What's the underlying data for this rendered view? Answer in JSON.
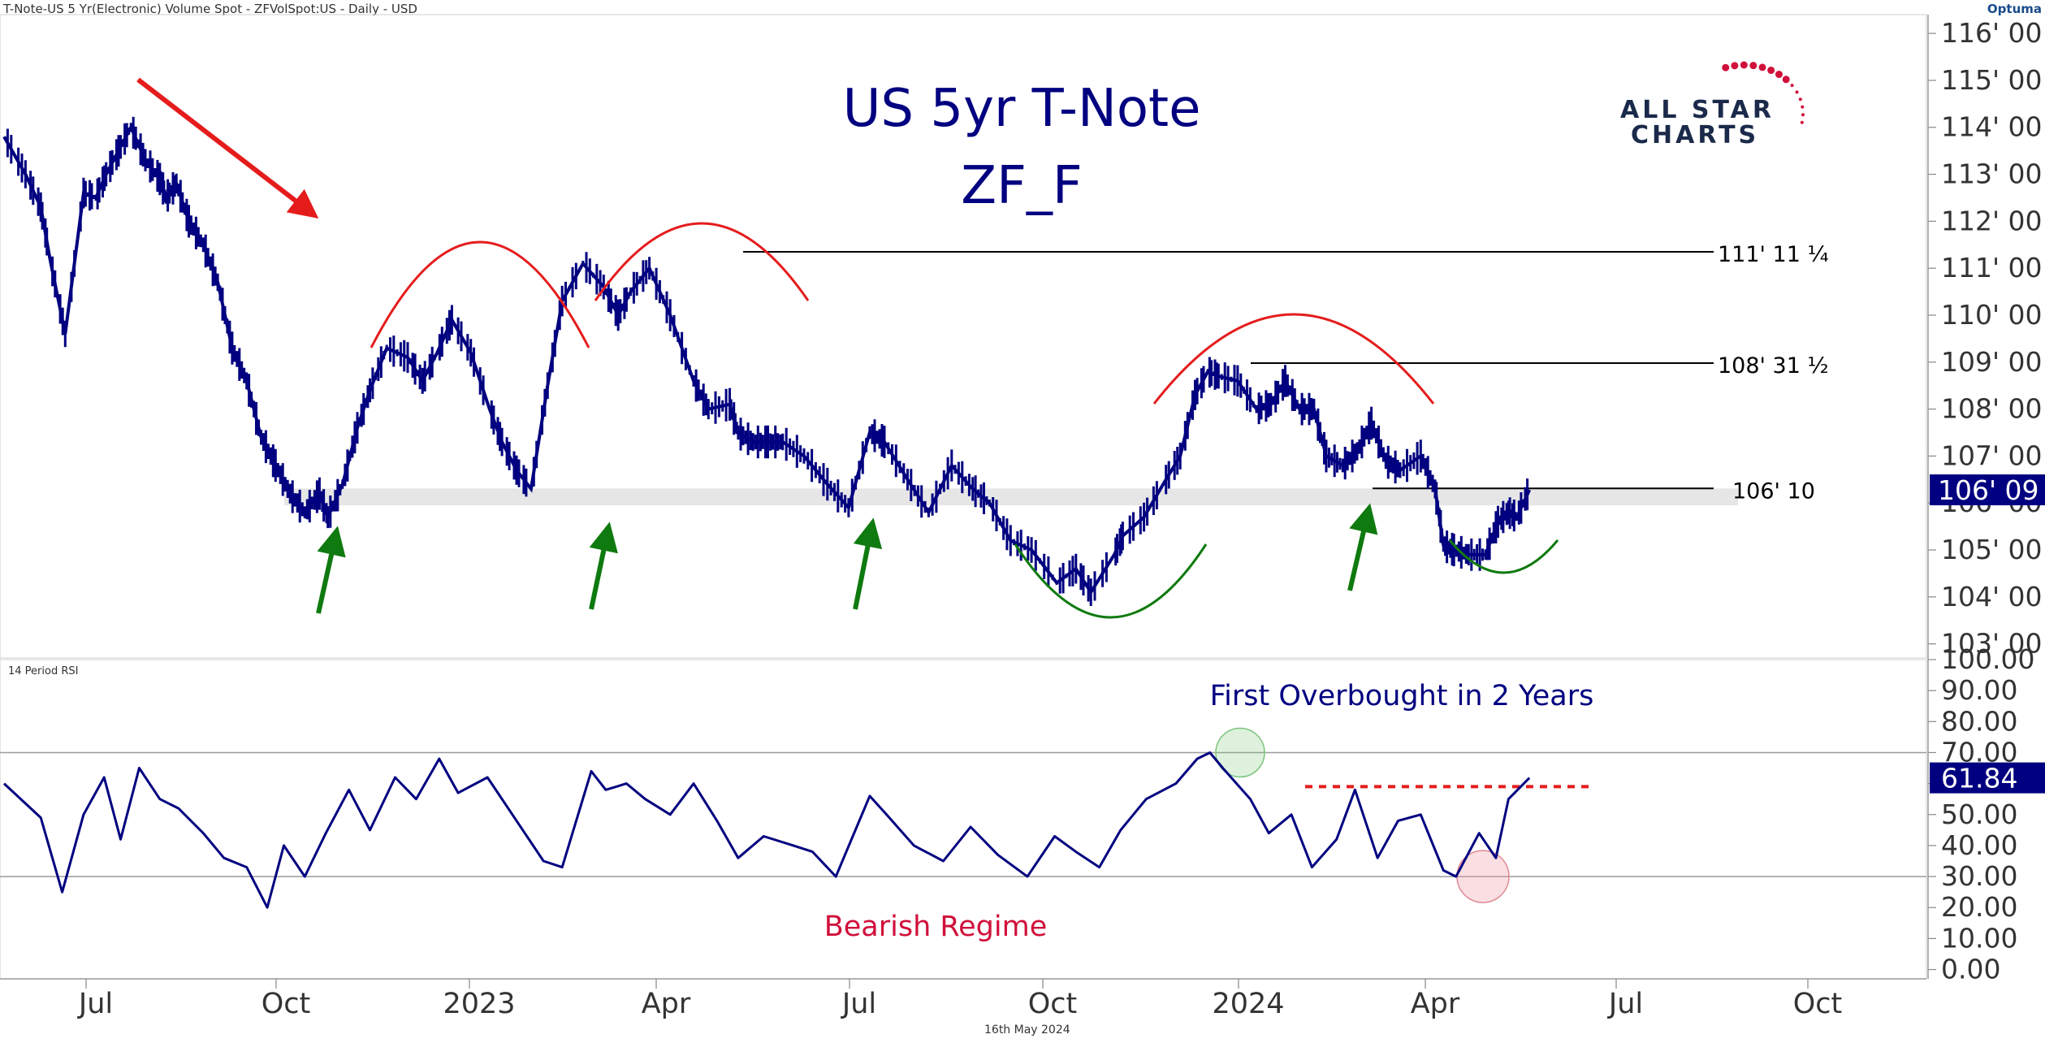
{
  "header": {
    "title": "T-Note-US 5 Yr(Electronic) Volume Spot - ZFVolSpot:US - Daily - USD",
    "brand": "Optuma"
  },
  "footer": {
    "date": "16th May 2024"
  },
  "logo": {
    "line1": "ALL STAR",
    "line2": "CHARTS"
  },
  "colors": {
    "price": "#000080",
    "down_arrow": "#e51c1c",
    "up_arrow": "#0f7a0f",
    "arc_red": "#e51c1c",
    "arc_green": "#0f7a0f",
    "rsi_line": "#000080",
    "annotation_blue": "#000080",
    "annotation_red": "#d0103a"
  },
  "chart_data": [
    {
      "type": "line",
      "title": "US 5yr T-Note",
      "subtitle": "ZF_F",
      "x_axis": {
        "ticks": [
          "Jul",
          "Oct",
          "2023",
          "Apr",
          "Jul",
          "Oct",
          "2024",
          "Apr",
          "Jul",
          "Oct"
        ]
      },
      "y_axis": {
        "ylim": [
          102.7,
          116.4
        ],
        "ticks": [
          "103' 00",
          "104' 00",
          "105' 00",
          "106' 00",
          "107' 00",
          "108' 00",
          "109' 00",
          "110' 00",
          "111' 00",
          "112' 00",
          "113' 00",
          "114' 00",
          "115' 00",
          "116' 00"
        ]
      },
      "current_price_label": "106' 09",
      "current_price_value": 106.28,
      "levels": [
        {
          "label": "111' 11 ¼",
          "value": 111.35
        },
        {
          "label": "108' 31 ½",
          "value": 108.98
        },
        {
          "label": "106' 10",
          "value": 106.31
        }
      ],
      "support_zone": [
        105.95,
        106.31
      ],
      "annotations": [
        {
          "type": "arrow",
          "direction": "down",
          "color": "red"
        },
        {
          "type": "arrow",
          "direction": "up",
          "color": "green",
          "count": 4
        },
        {
          "type": "arc",
          "shape": "top",
          "color": "red",
          "count": 3
        },
        {
          "type": "arc",
          "shape": "bottom",
          "color": "green",
          "count": 2
        }
      ],
      "series": [
        {
          "x": [
            "2022-06-01",
            "2022-06-08",
            "2022-06-13",
            "2022-06-16",
            "2022-06-21",
            "2022-06-27",
            "2022-07-01",
            "2022-07-06",
            "2022-07-12",
            "2022-07-18",
            "2022-07-25",
            "2022-08-01",
            "2022-08-04",
            "2022-08-09",
            "2022-08-15",
            "2022-08-22",
            "2022-08-29",
            "2022-09-05",
            "2022-09-12",
            "2022-09-19",
            "2022-09-26",
            "2022-10-03",
            "2022-10-10",
            "2022-10-17",
            "2022-10-21",
            "2022-10-28",
            "2022-11-04",
            "2022-11-10",
            "2022-11-18",
            "2022-11-28",
            "2022-12-05",
            "2022-12-12",
            "2022-12-19",
            "2022-12-28",
            "2023-01-06",
            "2023-01-12",
            "2023-01-19",
            "2023-01-26",
            "2023-02-03",
            "2023-02-10",
            "2023-02-20",
            "2023-03-02",
            "2023-03-09",
            "2023-03-15",
            "2023-03-24",
            "2023-04-03",
            "2023-04-14",
            "2023-04-21",
            "2023-05-01",
            "2023-05-05",
            "2023-05-12",
            "2023-05-19",
            "2023-05-26",
            "2023-06-05",
            "2023-06-16",
            "2023-06-26",
            "2023-07-06",
            "2023-07-13",
            "2023-07-24",
            "2023-08-03",
            "2023-08-14",
            "2023-08-24",
            "2023-09-01",
            "2023-09-11",
            "2023-09-21",
            "2023-10-03",
            "2023-10-12",
            "2023-10-19",
            "2023-10-30",
            "2023-11-03",
            "2023-11-13",
            "2023-11-22",
            "2023-11-30",
            "2023-12-07",
            "2023-12-13",
            "2023-12-18",
            "2023-12-27",
            "2024-01-05",
            "2024-01-12",
            "2024-01-19",
            "2024-01-26",
            "2024-02-02",
            "2024-02-08",
            "2024-02-16",
            "2024-02-23",
            "2024-03-01",
            "2024-03-08",
            "2024-03-15",
            "2024-03-25",
            "2024-04-01",
            "2024-04-05",
            "2024-04-10",
            "2024-04-17",
            "2024-04-25",
            "2024-05-01",
            "2024-05-06",
            "2024-05-10",
            "2024-05-16"
          ],
          "y": [
            113.8,
            113.0,
            112.3,
            111.2,
            109.6,
            112.6,
            112.5,
            113.0,
            113.5,
            114.0,
            113.3,
            112.9,
            112.5,
            112.8,
            112.0,
            111.5,
            110.7,
            109.3,
            108.6,
            107.4,
            106.8,
            106.2,
            105.8,
            106.2,
            105.7,
            106.4,
            107.6,
            108.4,
            109.3,
            109.1,
            108.6,
            109.2,
            109.9,
            109.2,
            108.0,
            107.3,
            106.7,
            106.3,
            108.5,
            110.3,
            111.1,
            110.6,
            110.0,
            110.5,
            111.0,
            110.0,
            108.6,
            108.0,
            108.1,
            107.5,
            107.3,
            107.3,
            107.3,
            107.0,
            106.4,
            105.9,
            107.5,
            107.3,
            106.5,
            105.8,
            106.8,
            106.3,
            106.0,
            105.2,
            105.0,
            104.3,
            104.6,
            104.1,
            104.9,
            105.3,
            105.7,
            106.4,
            107.0,
            108.3,
            108.8,
            108.7,
            108.6,
            108.0,
            108.1,
            108.6,
            108.0,
            108.0,
            107.0,
            106.8,
            107.1,
            107.7,
            106.9,
            106.7,
            107.0,
            106.3,
            105.1,
            105.0,
            104.9,
            104.9,
            105.6,
            105.8,
            105.7,
            106.28
          ]
        }
      ]
    },
    {
      "type": "line",
      "title": "14 Period RSI",
      "y_axis": {
        "ylim": [
          -3,
          100
        ],
        "ticks": [
          "0.00",
          "10.00",
          "20.00",
          "30.00",
          "40.00",
          "50.00",
          "60.00",
          "70.00",
          "80.00",
          "90.00",
          "100.00"
        ]
      },
      "reference_lines": [
        30,
        70
      ],
      "current_value_label": "61.84",
      "current_value": 61.84,
      "resistance_line": 59,
      "annotations_text": [
        "First Overbought in 2 Years",
        "Bearish Regime"
      ],
      "highlights": [
        {
          "color": "green",
          "value": 70
        },
        {
          "color": "red",
          "value": 30
        }
      ],
      "series": [
        {
          "x": [
            "2022-06-01",
            "2022-06-13",
            "2022-06-20",
            "2022-06-27",
            "2022-07-05",
            "2022-07-13",
            "2022-07-22",
            "2022-08-01",
            "2022-08-10",
            "2022-08-22",
            "2022-09-01",
            "2022-09-12",
            "2022-09-22",
            "2022-09-30",
            "2022-10-10",
            "2022-10-20",
            "2022-10-31",
            "2022-11-10",
            "2022-11-22",
            "2022-12-02",
            "2022-12-13",
            "2022-12-22",
            "2023-01-05",
            "2023-01-19",
            "2023-02-01",
            "2023-02-10",
            "2023-02-24",
            "2023-03-03",
            "2023-03-13",
            "2023-03-22",
            "2023-04-03",
            "2023-04-14",
            "2023-04-25",
            "2023-05-05",
            "2023-05-17",
            "2023-05-31",
            "2023-06-09",
            "2023-06-20",
            "2023-07-06",
            "2023-07-14",
            "2023-07-27",
            "2023-08-10",
            "2023-08-23",
            "2023-09-05",
            "2023-09-19",
            "2023-10-02",
            "2023-10-12",
            "2023-10-23",
            "2023-11-02",
            "2023-11-14",
            "2023-11-28",
            "2023-12-08",
            "2023-12-14",
            "2023-12-20",
            "2024-01-02",
            "2024-01-11",
            "2024-01-22",
            "2024-02-01",
            "2024-02-13",
            "2024-02-22",
            "2024-03-04",
            "2024-03-14",
            "2024-03-25",
            "2024-04-05",
            "2024-04-11",
            "2024-04-22",
            "2024-04-30",
            "2024-05-06",
            "2024-05-16"
          ],
          "y": [
            60,
            49,
            25,
            50,
            62,
            42,
            65,
            55,
            52,
            44,
            36,
            33,
            20,
            40,
            30,
            44,
            58,
            45,
            62,
            55,
            68,
            57,
            62,
            48,
            35,
            33,
            64,
            58,
            60,
            55,
            50,
            60,
            48,
            36,
            43,
            40,
            38,
            30,
            56,
            50,
            40,
            35,
            46,
            37,
            30,
            43,
            38,
            33,
            45,
            55,
            60,
            68,
            70,
            65,
            55,
            44,
            50,
            33,
            42,
            58,
            36,
            48,
            50,
            32,
            30,
            44,
            36,
            55,
            61.84
          ]
        }
      ]
    }
  ]
}
